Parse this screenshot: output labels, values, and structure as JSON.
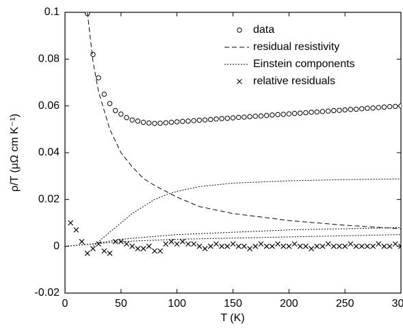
{
  "chart_data": {
    "type": "scatter",
    "xlabel": "T  (K)",
    "ylabel": "ρ/T  (μΩ cm K⁻¹)",
    "xlim": [
      0,
      300
    ],
    "xticks": [
      0,
      50,
      100,
      150,
      200,
      250,
      300
    ],
    "ylim": [
      -0.02,
      0.1
    ],
    "yticks": [
      -0.02,
      0,
      0.02,
      0.04,
      0.06,
      0.08,
      0.1
    ],
    "legend": "upper right",
    "series": [
      {
        "name": "data",
        "kind": "marker",
        "marker": "circle",
        "color": "#000000",
        "x": [
          20,
          25,
          30,
          35,
          40,
          45,
          50,
          55,
          60,
          65,
          70,
          75,
          80,
          85,
          90,
          95,
          100,
          105,
          110,
          115,
          120,
          125,
          130,
          135,
          140,
          145,
          150,
          155,
          160,
          165,
          170,
          175,
          180,
          185,
          190,
          195,
          200,
          205,
          210,
          215,
          220,
          225,
          230,
          235,
          240,
          245,
          250,
          255,
          260,
          265,
          270,
          275,
          280,
          285,
          290,
          295,
          300
        ],
        "values": [
          0.0995,
          0.082,
          0.072,
          0.065,
          0.061,
          0.058,
          0.0565,
          0.055,
          0.054,
          0.0535,
          0.053,
          0.0527,
          0.0525,
          0.0526,
          0.0528,
          0.053,
          0.0532,
          0.0534,
          0.0535,
          0.0537,
          0.0539,
          0.054,
          0.0542,
          0.0544,
          0.0546,
          0.0547,
          0.0549,
          0.0551,
          0.0552,
          0.0554,
          0.0556,
          0.0557,
          0.0559,
          0.0561,
          0.0563,
          0.0564,
          0.0566,
          0.0568,
          0.0569,
          0.0571,
          0.0573,
          0.0574,
          0.0576,
          0.0578,
          0.058,
          0.0581,
          0.0583,
          0.0585,
          0.0586,
          0.0588,
          0.059,
          0.0591,
          0.0593,
          0.0595,
          0.0597,
          0.0598,
          0.06
        ]
      },
      {
        "name": "residual resistivity",
        "kind": "line",
        "style": "dashed",
        "color": "#000000",
        "x": [
          20,
          25,
          30,
          40,
          50,
          60,
          70,
          80,
          100,
          120,
          150,
          200,
          250,
          300
        ],
        "values": [
          0.1,
          0.079,
          0.066,
          0.05,
          0.04,
          0.034,
          0.029,
          0.026,
          0.021,
          0.017,
          0.014,
          0.011,
          0.009,
          0.0075
        ]
      },
      {
        "name": "Einstein components",
        "kind": "line",
        "style": "dotted",
        "color": "#000000",
        "x": [
          25,
          30,
          40,
          50,
          60,
          70,
          80,
          90,
          100,
          120,
          150,
          200,
          250,
          300
        ],
        "values": [
          0,
          0.002,
          0.006,
          0.01,
          0.014,
          0.017,
          0.02,
          0.022,
          0.0235,
          0.0255,
          0.027,
          0.028,
          0.0285,
          0.0288
        ]
      },
      {
        "kind": "line",
        "style": "dotted",
        "color": "#000000",
        "x": [
          0,
          25,
          50,
          100,
          150,
          200,
          300
        ],
        "values": [
          0,
          0.001,
          0.003,
          0.005,
          0.006,
          0.007,
          0.008
        ]
      },
      {
        "kind": "line",
        "style": "dotted",
        "color": "#000000",
        "x": [
          0,
          50,
          100,
          200,
          300
        ],
        "values": [
          0,
          0.002,
          0.003,
          0.004,
          0.005
        ]
      },
      {
        "name": "relative residuals",
        "kind": "marker",
        "marker": "x",
        "color": "#000000",
        "x": [
          5,
          10,
          15,
          20,
          25,
          30,
          35,
          40,
          45,
          50,
          55,
          60,
          65,
          70,
          75,
          80,
          85,
          90,
          95,
          100,
          105,
          110,
          115,
          120,
          125,
          130,
          135,
          140,
          145,
          150,
          155,
          160,
          165,
          170,
          175,
          180,
          185,
          190,
          195,
          200,
          205,
          210,
          215,
          220,
          225,
          230,
          235,
          240,
          245,
          250,
          255,
          260,
          265,
          270,
          275,
          280,
          285,
          290,
          295,
          300
        ],
        "values": [
          0.01,
          0.007,
          0.002,
          -0.003,
          -0.001,
          0.001,
          -0.002,
          -0.003,
          0.002,
          0.002,
          0.001,
          0,
          -0.001,
          -0.001,
          0,
          -0.002,
          -0.002,
          0.001,
          0.002,
          0.001,
          0.002,
          0.001,
          0.001,
          0,
          -0.001,
          0,
          0.001,
          0,
          0,
          0.001,
          0,
          0,
          -0.001,
          0,
          0.001,
          0,
          0,
          0.001,
          0,
          0,
          0.001,
          0,
          0,
          -0.001,
          0,
          0,
          0.001,
          0,
          0,
          0,
          0.001,
          0,
          0,
          0,
          0,
          0.001,
          0,
          0,
          0.001,
          0
        ]
      }
    ]
  }
}
